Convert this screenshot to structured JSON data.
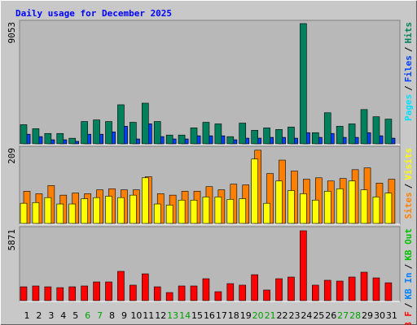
{
  "chart_data": {
    "type": "bar",
    "title": "Daily usage for December 2025",
    "categories": [
      "1",
      "2",
      "3",
      "4",
      "5",
      "6",
      "7",
      "8",
      "9",
      "10",
      "11",
      "12",
      "13",
      "14",
      "15",
      "16",
      "17",
      "18",
      "19",
      "20",
      "21",
      "22",
      "23",
      "24",
      "25",
      "26",
      "27",
      "28",
      "29",
      "30",
      "31"
    ],
    "category_colors": [
      "#000000",
      "#000000",
      "#000000",
      "#000000",
      "#000000",
      "#00a000",
      "#00a000",
      "#000000",
      "#000000",
      "#000000",
      "#000000",
      "#000000",
      "#00a000",
      "#00a000",
      "#000000",
      "#000000",
      "#000000",
      "#000000",
      "#000000",
      "#00a000",
      "#00a000",
      "#000000",
      "#000000",
      "#000000",
      "#000000",
      "#000000",
      "#00a000",
      "#00a000",
      "#000000",
      "#000000",
      "#000000"
    ],
    "legend_separator": "/",
    "panels": [
      {
        "ylim": [
          0,
          9053
        ],
        "yticks": [
          9053
        ],
        "series": [
          {
            "name": "Hits",
            "color": "#00805c",
            "values": [
              1440,
              1140,
              780,
              780,
              420,
              1680,
              1800,
              1680,
              2940,
              1620,
              3060,
              1680,
              660,
              660,
              1200,
              1620,
              1500,
              540,
              1560,
              1020,
              1200,
              1080,
              1260,
              9053,
              840,
              2340,
              1320,
              1500,
              2580,
              2040,
              1860
            ]
          },
          {
            "name": "Files",
            "color": "#0040ff",
            "values": [
              720,
              540,
              300,
              300,
              180,
              720,
              720,
              900,
              1320,
              360,
              1500,
              540,
              360,
              360,
              600,
              600,
              600,
              300,
              420,
              420,
              480,
              480,
              420,
              840,
              480,
              780,
              480,
              480,
              840,
              600,
              420
            ]
          },
          {
            "name": "Pages",
            "color": "#00e0ff",
            "values": [
              720,
              540,
              300,
              300,
              180,
              720,
              720,
              900,
              1320,
              360,
              1500,
              540,
              360,
              360,
              600,
              600,
              600,
              300,
              420,
              420,
              480,
              480,
              420,
              840,
              480,
              780,
              480,
              480,
              840,
              600,
              420
            ]
          }
        ]
      },
      {
        "ylim": [
          0,
          209
        ],
        "yticks": [
          209
        ],
        "series": [
          {
            "name": "Visits",
            "color": "#ffff00",
            "values": [
              57,
              59,
              73,
              55,
              55,
              70,
              73,
              77,
              73,
              80,
              129,
              55,
              52,
              66,
              66,
              75,
              75,
              68,
              70,
              182,
              57,
              120,
              93,
              84,
              66,
              91,
              98,
              120,
              95,
              75,
              86
            ]
          },
          {
            "name": "Sites",
            "color": "#ff8000",
            "values": [
              91,
              84,
              107,
              80,
              86,
              84,
              95,
              98,
              95,
              95,
              132,
              84,
              80,
              91,
              91,
              104,
              95,
              111,
              109,
              207,
              141,
              179,
              148,
              125,
              129,
              120,
              127,
              152,
              157,
              114,
              125
            ]
          }
        ]
      },
      {
        "ylim": [
          0,
          5871
        ],
        "yticks": [
          5871
        ],
        "series": [
          {
            "name": "KB F",
            "color": "#ff0000",
            "values": [
              1160,
              1230,
              1160,
              1090,
              1160,
              1230,
              1570,
              1570,
              2460,
              1300,
              2250,
              1160,
              680,
              1230,
              1230,
              1840,
              750,
              1430,
              1300,
              2180,
              890,
              1840,
              1980,
              5871,
              1300,
              1710,
              1640,
              1980,
              2390,
              1910,
              1500
            ]
          }
        ],
        "legend_extra": [
          {
            "name": "KB In",
            "color": "#0080ff"
          },
          {
            "name": "KB Out",
            "color": "#00c000"
          }
        ]
      }
    ]
  }
}
